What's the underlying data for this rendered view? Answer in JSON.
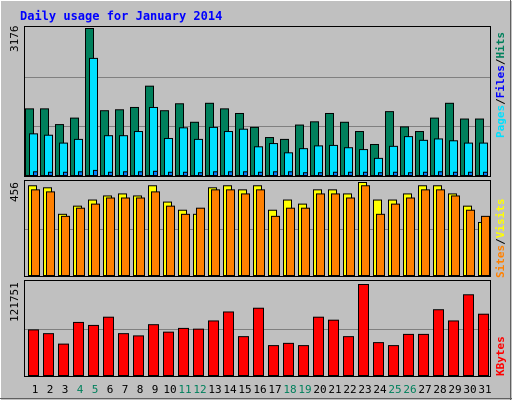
{
  "title": "Daily usage for January 2014",
  "colors": {
    "background": "#C0C0C0",
    "title": "#0000FF",
    "hits": "#00805C",
    "files": "#00E0FF",
    "pages": "#00E0FF",
    "visits": "#FFFF00",
    "sites": "#FF8000",
    "kbytes": "#FF0000",
    "weekend_label": "#00805C",
    "weekday_label": "#000000"
  },
  "labels": {
    "top_max": "3176",
    "mid_max": "456",
    "bottom_max": "121751",
    "right_pages": "Pages",
    "right_sep1": "/",
    "right_files": "Files",
    "right_sep2": "/",
    "right_hits": "Hits",
    "right_sites": "Sites",
    "right_sep3": "/",
    "right_visits": "Visits",
    "right_kbytes": "KBytes"
  },
  "chart_data": [
    {
      "type": "bar",
      "title": "Daily usage for January 2014",
      "categories": [
        "1",
        "2",
        "3",
        "4",
        "5",
        "6",
        "7",
        "8",
        "9",
        "10",
        "11",
        "12",
        "13",
        "14",
        "15",
        "16",
        "17",
        "18",
        "19",
        "20",
        "21",
        "22",
        "23",
        "24",
        "25",
        "26",
        "27",
        "28",
        "29",
        "30",
        "31"
      ],
      "weekend_days": [
        4,
        5,
        11,
        12,
        18,
        19,
        25,
        26
      ],
      "ylim": [
        0,
        3176
      ],
      "series": [
        {
          "name": "Hits",
          "values": [
            1440,
            1440,
            1100,
            1240,
            3176,
            1400,
            1420,
            1470,
            1930,
            1400,
            1550,
            1150,
            1560,
            1440,
            1340,
            1040,
            820,
            780,
            1090,
            1160,
            1340,
            1150,
            950,
            670,
            1380,
            1050,
            950,
            1240,
            1560,
            1220,
            1220
          ]
        },
        {
          "name": "Files",
          "values": [
            900,
            870,
            700,
            780,
            2530,
            860,
            860,
            950,
            1470,
            800,
            1030,
            780,
            1040,
            950,
            1000,
            620,
            690,
            490,
            580,
            640,
            650,
            600,
            560,
            370,
            630,
            840,
            760,
            790,
            750,
            700,
            700
          ]
        },
        {
          "name": "Pages",
          "values": [
            80,
            70,
            70,
            80,
            110,
            70,
            80,
            80,
            90,
            70,
            70,
            60,
            80,
            80,
            80,
            70,
            80,
            80,
            60,
            60,
            70,
            70,
            70,
            60,
            70,
            60,
            70,
            80,
            70,
            70,
            70
          ]
        }
      ]
    },
    {
      "type": "bar",
      "ylim": [
        0,
        456
      ],
      "series": [
        {
          "name": "Visits",
          "values": [
            440,
            430,
            300,
            340,
            370,
            390,
            400,
            390,
            440,
            360,
            320,
            300,
            430,
            440,
            420,
            440,
            320,
            370,
            350,
            420,
            420,
            400,
            456,
            370,
            370,
            400,
            440,
            440,
            400,
            340,
            260
          ]
        },
        {
          "name": "Sites",
          "values": [
            420,
            410,
            290,
            330,
            350,
            380,
            380,
            380,
            410,
            340,
            300,
            330,
            420,
            420,
            400,
            420,
            290,
            330,
            330,
            400,
            400,
            380,
            440,
            300,
            350,
            380,
            420,
            420,
            390,
            320,
            290
          ]
        }
      ]
    },
    {
      "type": "bar",
      "ylim": [
        0,
        121751
      ],
      "series": [
        {
          "name": "KBytes",
          "values": [
            61000,
            56000,
            42000,
            71000,
            67000,
            78000,
            56000,
            53000,
            68000,
            58000,
            63000,
            62000,
            73000,
            85000,
            52000,
            90000,
            40000,
            43000,
            40000,
            78000,
            74000,
            52000,
            121751,
            44000,
            40000,
            55000,
            55000,
            88000,
            73000,
            108000,
            82000
          ]
        }
      ]
    }
  ]
}
